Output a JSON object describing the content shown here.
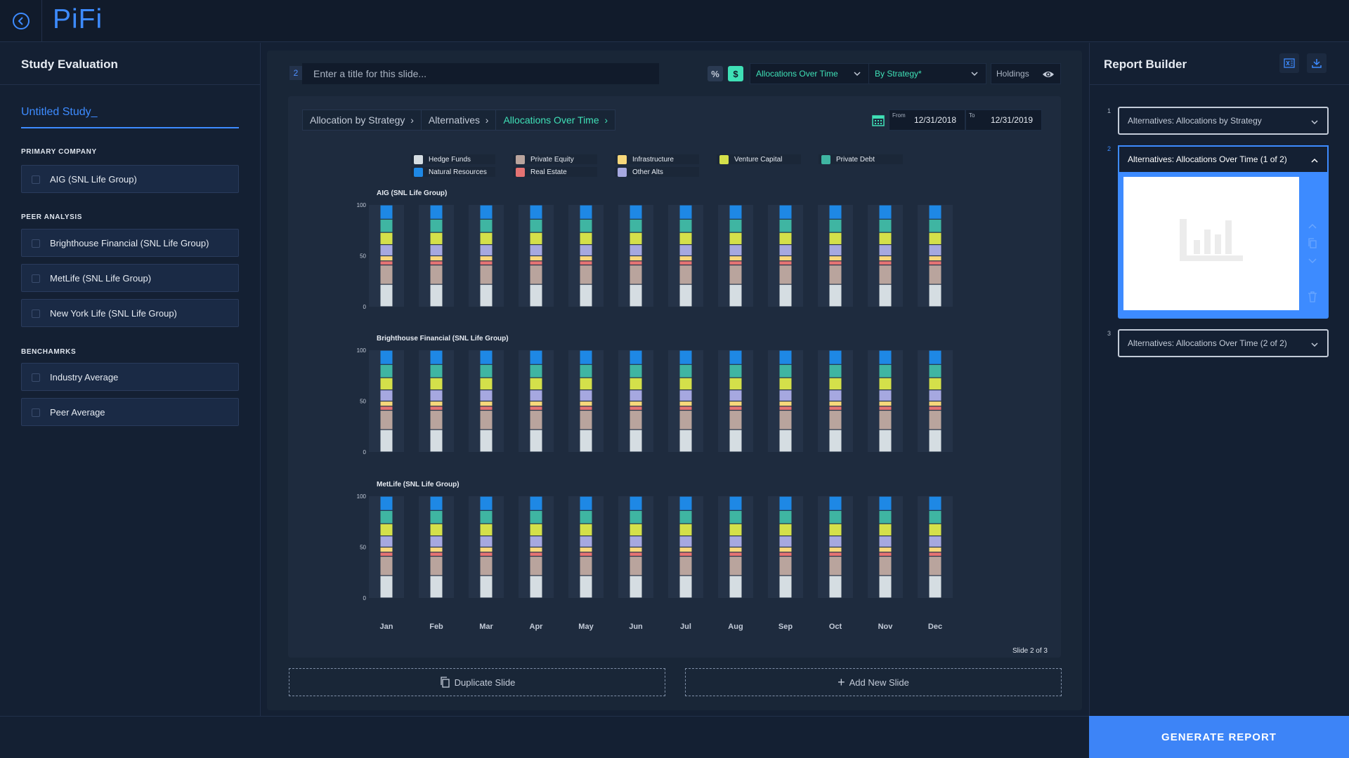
{
  "app": {
    "logo": "PiFi"
  },
  "left_panel": {
    "title": "Study Evaluation",
    "study_name": "Untitled Study_",
    "sections": {
      "primary": "PRIMARY COMPANY",
      "peer": "PEER ANALYSIS",
      "bench": "BENCHAMRKS"
    },
    "primary_items": [
      "AIG (SNL Life Group)"
    ],
    "peer_items": [
      "Brighthouse Financial (SNL Life Group)",
      "MetLife (SNL Life Group)",
      "New York Life (SNL Life Group)"
    ],
    "benchmark_items": [
      "Industry Average",
      "Peer Average"
    ]
  },
  "toolbar": {
    "slide_number": "2",
    "title_placeholder": "Enter a title for this slide...",
    "percent_label": "%",
    "dollar_label": "$",
    "view_select": "Allocations Over Time",
    "group_select": "By Strategy*",
    "holdings_label": "Holdings"
  },
  "breadcrumb": [
    "Allocation by Strategy",
    "Alternatives",
    "Allocations Over Time"
  ],
  "date_range": {
    "from_label": "From",
    "from": "12/31/2018",
    "to_label": "To",
    "to": "12/31/2019"
  },
  "slide_indicator": "Slide 2 of 3",
  "buttons": {
    "duplicate": "Duplicate Slide",
    "add": "Add New Slide",
    "generate": "GENERATE REPORT"
  },
  "report_builder": {
    "title": "Report Builder",
    "items": [
      {
        "num": "1",
        "label": "Alternatives: Allocations by Strategy"
      },
      {
        "num": "2",
        "label": "Alternatives: Allocations Over Time (1 of 2)"
      },
      {
        "num": "3",
        "label": "Alternatives: Allocations Over Time (2 of 2)"
      }
    ]
  },
  "colors": {
    "accent": "#3d8bff",
    "teal": "#3fe0b6",
    "generate": "#3d84f7"
  },
  "chart_data": {
    "type": "bar",
    "stacked": true,
    "categories": [
      "Jan",
      "Feb",
      "Mar",
      "Apr",
      "May",
      "Jun",
      "Jul",
      "Aug",
      "Sep",
      "Oct",
      "Nov",
      "Dec"
    ],
    "ylim": [
      0,
      100
    ],
    "yticks": [
      0,
      50,
      100
    ],
    "legend": [
      {
        "name": "Hedge Funds",
        "color": "#d5dde2"
      },
      {
        "name": "Private Equity",
        "color": "#b9a49d"
      },
      {
        "name": "Infrastructure",
        "color": "#f7d77a"
      },
      {
        "name": "Venture Capital",
        "color": "#d4e04a"
      },
      {
        "name": "Private Debt",
        "color": "#3fb5a2"
      },
      {
        "name": "Natural Resources",
        "color": "#1e88e5"
      },
      {
        "name": "Real Estate",
        "color": "#e57373"
      },
      {
        "name": "Other Alts",
        "color": "#a6a8e0"
      }
    ],
    "stack_order": [
      "Hedge Funds",
      "Private Equity",
      "Real Estate",
      "Infrastructure",
      "Other Alts",
      "Venture Capital",
      "Private Debt",
      "Natural Resources"
    ],
    "panels": [
      {
        "title": "AIG (SNL Life Group)",
        "values": {
          "Hedge Funds": 22,
          "Private Equity": 19,
          "Real Estate": 4,
          "Infrastructure": 5,
          "Other Alts": 11,
          "Venture Capital": 12,
          "Private Debt": 13,
          "Natural Resources": 14
        }
      },
      {
        "title": "Brighthouse Financial (SNL Life Group)",
        "values": {
          "Hedge Funds": 22,
          "Private Equity": 19,
          "Real Estate": 4,
          "Infrastructure": 5,
          "Other Alts": 11,
          "Venture Capital": 12,
          "Private Debt": 13,
          "Natural Resources": 14
        }
      },
      {
        "title": "MetLife (SNL Life Group)",
        "values": {
          "Hedge Funds": 22,
          "Private Equity": 19,
          "Real Estate": 4,
          "Infrastructure": 5,
          "Other Alts": 11,
          "Venture Capital": 12,
          "Private Debt": 13,
          "Natural Resources": 14
        }
      }
    ]
  }
}
